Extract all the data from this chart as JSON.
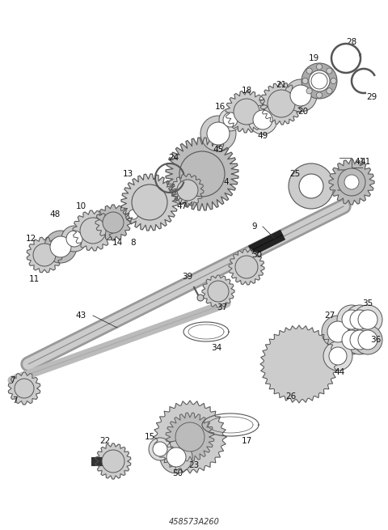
{
  "title": "458573A260",
  "bg_color": "#ffffff",
  "line_color": "#555555",
  "gear_color": "#888888",
  "gear_fill": "#cccccc",
  "label_color": "#111111",
  "fig_width": 4.8,
  "fig_height": 6.55,
  "dpi": 100,
  "parts": {
    "part_numbers": [
      4,
      7,
      8,
      9,
      10,
      11,
      12,
      13,
      14,
      15,
      16,
      17,
      18,
      19,
      20,
      21,
      22,
      23,
      24,
      25,
      26,
      27,
      28,
      29,
      30,
      34,
      35,
      36,
      37,
      39,
      41,
      43,
      44,
      45,
      47,
      48,
      49,
      50
    ]
  }
}
